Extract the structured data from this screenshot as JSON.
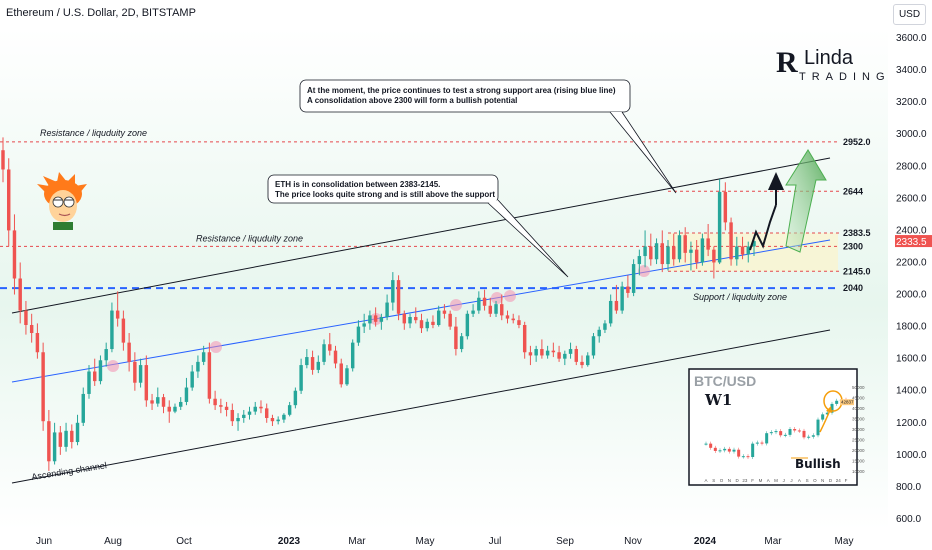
{
  "header": {
    "title": "Ethereum / U.S. Dollar, 2D, BITSTAMP"
  },
  "currency_button": "USD",
  "logo": {
    "line1": "Linda",
    "line2": "TRADING",
    "mark": "R"
  },
  "chart_data": {
    "type": "candlestick",
    "title": "Ethereum / U.S. Dollar, 2D, BITSTAMP",
    "y_axis": {
      "ticks": [
        600,
        800,
        1000,
        1200,
        1400,
        1600,
        1800,
        2000,
        2200,
        2400,
        2600,
        2800,
        3000,
        3200,
        3400,
        3600
      ],
      "tick_labels": [
        "600.0",
        "800.0",
        "1000.0",
        "1200.0",
        "1400.0",
        "1600.0",
        "1800.0",
        "2000.0",
        "2200.0",
        "2400.0",
        "2600.0",
        "2800.0",
        "3000.0",
        "3200.0",
        "3400.0",
        "3600.0"
      ],
      "range": [
        540,
        3800
      ]
    },
    "x_axis": {
      "ticks": [
        "Jun",
        "Aug",
        "Oct",
        "2023",
        "Mar",
        "May",
        "Jul",
        "Sep",
        "Nov",
        "2024",
        "Mar",
        "May"
      ],
      "bold": [
        "2023",
        "2024"
      ]
    },
    "ohlc": [
      [
        2900,
        2980,
        2700,
        2780
      ],
      [
        2780,
        2850,
        2300,
        2400
      ],
      [
        2400,
        2500,
        2000,
        2100
      ],
      [
        2100,
        2200,
        1820,
        1900
      ],
      [
        1900,
        1960,
        1750,
        1810
      ],
      [
        1810,
        1880,
        1700,
        1760
      ],
      [
        1760,
        1820,
        1600,
        1640
      ],
      [
        1640,
        1700,
        1150,
        1210
      ],
      [
        1210,
        1280,
        900,
        960
      ],
      [
        960,
        1200,
        940,
        1140
      ],
      [
        1140,
        1180,
        1000,
        1050
      ],
      [
        1050,
        1200,
        1020,
        1150
      ],
      [
        1150,
        1190,
        1040,
        1080
      ],
      [
        1080,
        1250,
        1060,
        1200
      ],
      [
        1200,
        1420,
        1180,
        1380
      ],
      [
        1380,
        1560,
        1350,
        1520
      ],
      [
        1520,
        1600,
        1430,
        1460
      ],
      [
        1460,
        1620,
        1440,
        1590
      ],
      [
        1590,
        1700,
        1550,
        1660
      ],
      [
        1660,
        1950,
        1640,
        1900
      ],
      [
        1900,
        2020,
        1800,
        1850
      ],
      [
        1850,
        1900,
        1650,
        1700
      ],
      [
        1700,
        1760,
        1520,
        1580
      ],
      [
        1580,
        1640,
        1400,
        1450
      ],
      [
        1450,
        1600,
        1420,
        1560
      ],
      [
        1560,
        1620,
        1300,
        1340
      ],
      [
        1340,
        1380,
        1280,
        1320
      ],
      [
        1320,
        1420,
        1300,
        1360
      ],
      [
        1360,
        1380,
        1260,
        1300
      ],
      [
        1300,
        1340,
        1200,
        1270
      ],
      [
        1270,
        1320,
        1260,
        1300
      ],
      [
        1300,
        1360,
        1280,
        1330
      ],
      [
        1330,
        1480,
        1310,
        1420
      ],
      [
        1420,
        1560,
        1400,
        1520
      ],
      [
        1520,
        1620,
        1480,
        1580
      ],
      [
        1580,
        1680,
        1560,
        1640
      ],
      [
        1640,
        1700,
        1320,
        1350
      ],
      [
        1350,
        1400,
        1280,
        1310
      ],
      [
        1310,
        1350,
        1260,
        1300
      ],
      [
        1300,
        1330,
        1240,
        1280
      ],
      [
        1280,
        1320,
        1180,
        1210
      ],
      [
        1210,
        1260,
        1150,
        1230
      ],
      [
        1230,
        1280,
        1200,
        1250
      ],
      [
        1250,
        1300,
        1220,
        1270
      ],
      [
        1270,
        1330,
        1250,
        1300
      ],
      [
        1300,
        1340,
        1260,
        1290
      ],
      [
        1290,
        1320,
        1200,
        1230
      ],
      [
        1230,
        1250,
        1180,
        1210
      ],
      [
        1210,
        1240,
        1190,
        1220
      ],
      [
        1220,
        1260,
        1200,
        1250
      ],
      [
        1250,
        1330,
        1240,
        1310
      ],
      [
        1310,
        1420,
        1290,
        1400
      ],
      [
        1400,
        1600,
        1380,
        1560
      ],
      [
        1560,
        1660,
        1540,
        1610
      ],
      [
        1610,
        1650,
        1500,
        1530
      ],
      [
        1530,
        1620,
        1510,
        1580
      ],
      [
        1580,
        1720,
        1560,
        1690
      ],
      [
        1690,
        1760,
        1620,
        1650
      ],
      [
        1650,
        1680,
        1540,
        1570
      ],
      [
        1570,
        1600,
        1420,
        1440
      ],
      [
        1440,
        1560,
        1430,
        1540
      ],
      [
        1540,
        1720,
        1520,
        1700
      ],
      [
        1700,
        1840,
        1680,
        1800
      ],
      [
        1800,
        1880,
        1760,
        1820
      ],
      [
        1820,
        1900,
        1780,
        1870
      ],
      [
        1870,
        1920,
        1800,
        1830
      ],
      [
        1830,
        1880,
        1780,
        1860
      ],
      [
        1860,
        2000,
        1840,
        1950
      ],
      [
        1950,
        2140,
        1900,
        2090
      ],
      [
        2090,
        2120,
        1840,
        1880
      ],
      [
        1880,
        1900,
        1780,
        1820
      ],
      [
        1820,
        1880,
        1790,
        1860
      ],
      [
        1860,
        1920,
        1820,
        1840
      ],
      [
        1840,
        1880,
        1760,
        1790
      ],
      [
        1790,
        1850,
        1770,
        1830
      ],
      [
        1830,
        1870,
        1790,
        1810
      ],
      [
        1810,
        1930,
        1800,
        1900
      ],
      [
        1900,
        1940,
        1850,
        1880
      ],
      [
        1880,
        1900,
        1780,
        1800
      ],
      [
        1800,
        1860,
        1620,
        1660
      ],
      [
        1660,
        1760,
        1640,
        1740
      ],
      [
        1740,
        1900,
        1720,
        1880
      ],
      [
        1880,
        1940,
        1860,
        1900
      ],
      [
        1900,
        2020,
        1880,
        1980
      ],
      [
        1980,
        2030,
        1900,
        1930
      ],
      [
        1930,
        1980,
        1860,
        1880
      ],
      [
        1880,
        1960,
        1860,
        1940
      ],
      [
        1940,
        2000,
        1840,
        1870
      ],
      [
        1870,
        1900,
        1820,
        1850
      ],
      [
        1850,
        1880,
        1820,
        1840
      ],
      [
        1840,
        1870,
        1790,
        1810
      ],
      [
        1810,
        1830,
        1600,
        1640
      ],
      [
        1640,
        1680,
        1560,
        1620
      ],
      [
        1620,
        1680,
        1580,
        1660
      ],
      [
        1660,
        1720,
        1600,
        1620
      ],
      [
        1620,
        1680,
        1600,
        1650
      ],
      [
        1650,
        1700,
        1610,
        1640
      ],
      [
        1640,
        1680,
        1580,
        1600
      ],
      [
        1600,
        1650,
        1560,
        1630
      ],
      [
        1630,
        1700,
        1600,
        1660
      ],
      [
        1660,
        1680,
        1560,
        1580
      ],
      [
        1580,
        1620,
        1540,
        1560
      ],
      [
        1560,
        1640,
        1550,
        1620
      ],
      [
        1620,
        1760,
        1600,
        1740
      ],
      [
        1740,
        1800,
        1700,
        1780
      ],
      [
        1780,
        1840,
        1760,
        1820
      ],
      [
        1820,
        2000,
        1800,
        1960
      ],
      [
        1960,
        2060,
        1880,
        1900
      ],
      [
        1900,
        2080,
        1880,
        2050
      ],
      [
        2050,
        2120,
        1980,
        2010
      ],
      [
        2010,
        2220,
        1990,
        2190
      ],
      [
        2190,
        2280,
        2120,
        2240
      ],
      [
        2240,
        2400,
        2170,
        2300
      ],
      [
        2300,
        2380,
        2180,
        2220
      ],
      [
        2220,
        2350,
        2190,
        2320
      ],
      [
        2320,
        2400,
        2140,
        2190
      ],
      [
        2190,
        2340,
        2150,
        2300
      ],
      [
        2300,
        2380,
        2180,
        2220
      ],
      [
        2220,
        2400,
        2200,
        2370
      ],
      [
        2370,
        2420,
        2200,
        2260
      ],
      [
        2260,
        2330,
        2150,
        2280
      ],
      [
        2280,
        2340,
        2160,
        2200
      ],
      [
        2200,
        2380,
        2180,
        2350
      ],
      [
        2350,
        2440,
        2240,
        2280
      ],
      [
        2280,
        2300,
        2100,
        2200
      ],
      [
        2200,
        2720,
        2190,
        2640
      ],
      [
        2640,
        2700,
        2400,
        2450
      ],
      [
        2450,
        2480,
        2180,
        2220
      ],
      [
        2220,
        2360,
        2180,
        2300
      ],
      [
        2300,
        2360,
        2220,
        2250
      ],
      [
        2250,
        2330,
        2200,
        2300
      ],
      [
        2300,
        2360,
        2240,
        2333.5
      ]
    ],
    "last_price": 2333.5,
    "levels": [
      {
        "value": 2952.0,
        "label": "2952.0",
        "name": "Resistance / liquduity zone",
        "color": "#e5484d"
      },
      {
        "value": 2644,
        "label": "2644",
        "color": "#e5484d"
      },
      {
        "value": 2383.5,
        "label": "2383.5",
        "color": "#e5484d"
      },
      {
        "value": 2300,
        "label": "2300",
        "name": "Resistance / liquduity zone",
        "color": "#e5484d"
      },
      {
        "value": 2145.0,
        "label": "2145.0",
        "color": "#e5484d"
      },
      {
        "value": 2040,
        "label": "2040",
        "name": "Support / liquduity zone",
        "color": "#2962ff"
      }
    ],
    "channel_label": "Ascending channel",
    "annotations": [
      {
        "id": "callout1",
        "lines": [
          "At the moment, the price continues to test a strong support area (rising blue line)",
          "A consolidation above 2300 will form a bullish potential"
        ]
      },
      {
        "id": "callout2",
        "lines": [
          "ETH is in consolidation between 2383-2145.",
          "The price looks quite strong and is still above the support"
        ]
      }
    ],
    "inset": {
      "title": "BTC/USD",
      "timeframe": "W1",
      "note": "Bullish",
      "price_label": "42837",
      "y_ticks": [
        "50000",
        "45000",
        "40000",
        "35000",
        "30000",
        "25000",
        "20000",
        "15000",
        "10000"
      ],
      "x_ticks": [
        "A",
        "S",
        "O",
        "N",
        "D",
        "23",
        "F",
        "M",
        "A",
        "M",
        "J",
        "J",
        "A",
        "S",
        "O",
        "N",
        "D",
        "24",
        "F"
      ],
      "closes": [
        23000,
        21000,
        19500,
        19800,
        20500,
        19200,
        20100,
        16800,
        17000,
        16600,
        23000,
        23500,
        23100,
        28000,
        28500,
        29000,
        27000,
        27200,
        30000,
        29300,
        29100,
        26000,
        26300,
        27000,
        34500,
        37000,
        37800,
        42000,
        43500,
        44000,
        42837
      ]
    },
    "colors": {
      "up": "#26a69a",
      "down": "#ef5350",
      "blue_line": "#2962ff",
      "green_arrow": "#4caf50"
    }
  }
}
